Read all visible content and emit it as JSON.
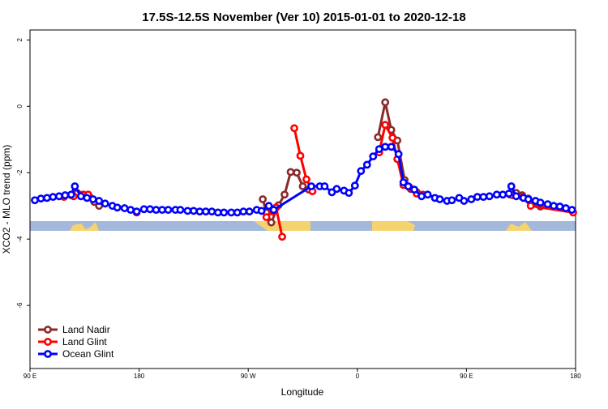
{
  "chart_data": {
    "type": "line",
    "title": "17.5S-12.5S November (Ver 10)   2015-01-01 to 2020-12-18",
    "x_label": "Longitude",
    "y_label": "XCO2 - MLO trend (ppm)",
    "xlim": [
      90,
      540
    ],
    "ylim": [
      -7.9,
      2.3
    ],
    "xticks": [
      {
        "value": 90,
        "label": "90 E"
      },
      180,
      {
        "value": 270,
        "label": "90 W"
      },
      {
        "value": 360,
        "label": "0"
      },
      {
        "value": 450,
        "label": "90 E"
      },
      {
        "value": 540,
        "label": "180"
      }
    ],
    "yticks": [
      2,
      0,
      -2,
      -4,
      -6
    ],
    "legend": "bottom-left",
    "series": [
      {
        "name": "Land Nadir",
        "color": "#8b2a2a",
        "x": [
          124,
          129,
          134,
          139,
          143,
          147,
          null,
          282,
          285,
          289,
          295,
          300,
          305,
          310,
          315,
          320,
          null,
          377,
          383,
          388,
          393,
          399,
          404,
          409,
          null,
          486,
          491,
          496,
          501,
          506,
          511
        ],
        "values": [
          -2.68,
          -2.61,
          -2.66,
          -2.73,
          -2.88,
          -3.0,
          null,
          -2.8,
          -3.2,
          -3.5,
          -2.98,
          -2.66,
          -1.98,
          -2.0,
          -2.41,
          -2.51,
          null,
          -0.93,
          0.12,
          -0.71,
          -1.03,
          -2.22,
          -2.49,
          -2.59,
          null,
          -2.66,
          -2.61,
          -2.68,
          -2.78,
          -2.9,
          -3.02
        ]
      },
      {
        "name": "Land Glint",
        "color": "#ff0000",
        "x": [
          118,
          126,
          134,
          138,
          null,
          178,
          null,
          285,
          290,
          293,
          298,
          null,
          308,
          313,
          318,
          323,
          null,
          378,
          383,
          389,
          393,
          398,
          403,
          409,
          414,
          null,
          488,
          496,
          503,
          538
        ],
        "values": [
          -2.73,
          -2.71,
          -2.66,
          -2.66,
          null,
          -3.2,
          null,
          -3.34,
          -3.17,
          -3.05,
          -3.93,
          null,
          -0.66,
          -1.49,
          -2.2,
          -2.56,
          null,
          -1.39,
          -0.56,
          -0.95,
          -1.59,
          -2.37,
          -2.44,
          -2.63,
          -2.66,
          null,
          -2.68,
          -2.73,
          -3.0,
          -3.2
        ]
      },
      {
        "name": "Ocean Glint",
        "color": "#0000ff",
        "x": [
          94,
          99,
          104,
          109,
          114,
          119,
          124,
          127,
          132,
          137,
          142,
          147,
          152,
          158,
          162,
          168,
          173,
          178,
          184,
          189,
          194,
          199,
          204,
          210,
          214,
          220,
          225,
          230,
          235,
          240,
          245,
          250,
          256,
          261,
          266,
          271,
          277,
          281,
          287,
          291,
          322,
          329,
          333,
          339,
          343,
          349,
          353,
          358,
          363,
          368,
          373,
          378,
          383,
          388,
          394,
          398,
          402,
          407,
          413,
          418,
          424,
          428,
          434,
          438,
          444,
          448,
          454,
          459,
          464,
          469,
          475,
          480,
          485,
          487,
          491,
          497,
          501,
          507,
          511,
          517,
          522,
          527,
          532,
          537
        ],
        "values": [
          -2.83,
          -2.78,
          -2.76,
          -2.73,
          -2.71,
          -2.68,
          -2.66,
          -2.41,
          -2.71,
          -2.76,
          -2.8,
          -2.85,
          -2.93,
          -3.0,
          -3.05,
          -3.07,
          -3.12,
          -3.17,
          -3.1,
          -3.1,
          -3.12,
          -3.12,
          -3.12,
          -3.12,
          -3.12,
          -3.15,
          -3.15,
          -3.17,
          -3.17,
          -3.17,
          -3.2,
          -3.2,
          -3.2,
          -3.2,
          -3.17,
          -3.17,
          -3.12,
          -3.15,
          -3.0,
          -3.12,
          -2.41,
          -2.41,
          -2.41,
          -2.59,
          -2.49,
          -2.54,
          -2.61,
          -2.39,
          -1.95,
          -1.76,
          -1.51,
          -1.29,
          -1.22,
          -1.22,
          -1.44,
          -2.29,
          -2.41,
          -2.51,
          -2.71,
          -2.66,
          -2.76,
          -2.8,
          -2.85,
          -2.83,
          -2.76,
          -2.85,
          -2.8,
          -2.73,
          -2.73,
          -2.71,
          -2.66,
          -2.66,
          -2.63,
          -2.41,
          -2.71,
          -2.76,
          -2.8,
          -2.85,
          -2.9,
          -2.95,
          -3.0,
          -3.02,
          -3.07,
          -3.12
        ]
      }
    ]
  }
}
